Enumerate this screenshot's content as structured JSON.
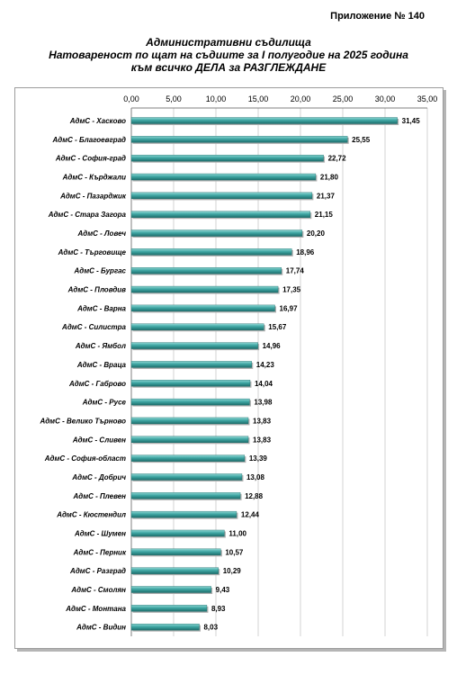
{
  "annex_label": "Приложение № 140",
  "title_lines": [
    "Административни съдилища",
    "Натовареност по щат на съдиите за I полугодие на 2025 година",
    "към всичко ДЕЛА за РАЗГЛЕЖДАНЕ"
  ],
  "chart_data": {
    "type": "bar",
    "orientation": "horizontal",
    "title": "Административни съдилища Натовареност по щат на съдиите за I полугодие на 2025 година към всичко ДЕЛА за РАЗГЛЕЖДАНЕ",
    "xlabel": "",
    "ylabel": "",
    "xlim": [
      0,
      35
    ],
    "xticks": [
      "0,00",
      "5,00",
      "10,00",
      "15,00",
      "20,00",
      "25,00",
      "30,00",
      "35,00"
    ],
    "x_axis_position": "top",
    "grid": true,
    "bar_color": "#3fa6a3",
    "categories": [
      "АдмС - Хасково",
      "АдмС - Благоевград",
      "АдмС - София-град",
      "АдмС - Кърджали",
      "АдмС - Пазарджик",
      "АдмС - Стара Загора",
      "АдмС - Ловеч",
      "АдмС - Търговище",
      "АдмС - Бургас",
      "АдмС - Пловдив",
      "АдмС - Варна",
      "АдмС - Силистра",
      "АдмС - Ямбол",
      "АдмС - Враца",
      "АдмС - Габрово",
      "АдмС - Русе",
      "АдмС - Велико Търново",
      "АдмС - Сливен",
      "АдмС - София-област",
      "АдмС - Добрич",
      "АдмС - Плевен",
      "АдмС - Кюстендил",
      "АдмС - Шумен",
      "АдмС - Перник",
      "АдмС - Разград",
      "АдмС - Смолян",
      "АдмС - Монтана",
      "АдмС - Видин"
    ],
    "values": [
      31.45,
      25.55,
      22.72,
      21.8,
      21.37,
      21.15,
      20.2,
      18.96,
      17.74,
      17.35,
      16.97,
      15.67,
      14.96,
      14.23,
      14.04,
      13.98,
      13.83,
      13.83,
      13.39,
      13.08,
      12.88,
      12.44,
      11.0,
      10.57,
      10.29,
      9.43,
      8.93,
      8.03
    ],
    "value_labels": [
      "31,45",
      "25,55",
      "22,72",
      "21,80",
      "21,37",
      "21,15",
      "20,20",
      "18,96",
      "17,74",
      "17,35",
      "16,97",
      "15,67",
      "14,96",
      "14,23",
      "14,04",
      "13,98",
      "13,83",
      "13,83",
      "13,39",
      "13,08",
      "12,88",
      "12,44",
      "11,00",
      "10,57",
      "10,29",
      "9,43",
      "8,93",
      "8,03"
    ]
  }
}
